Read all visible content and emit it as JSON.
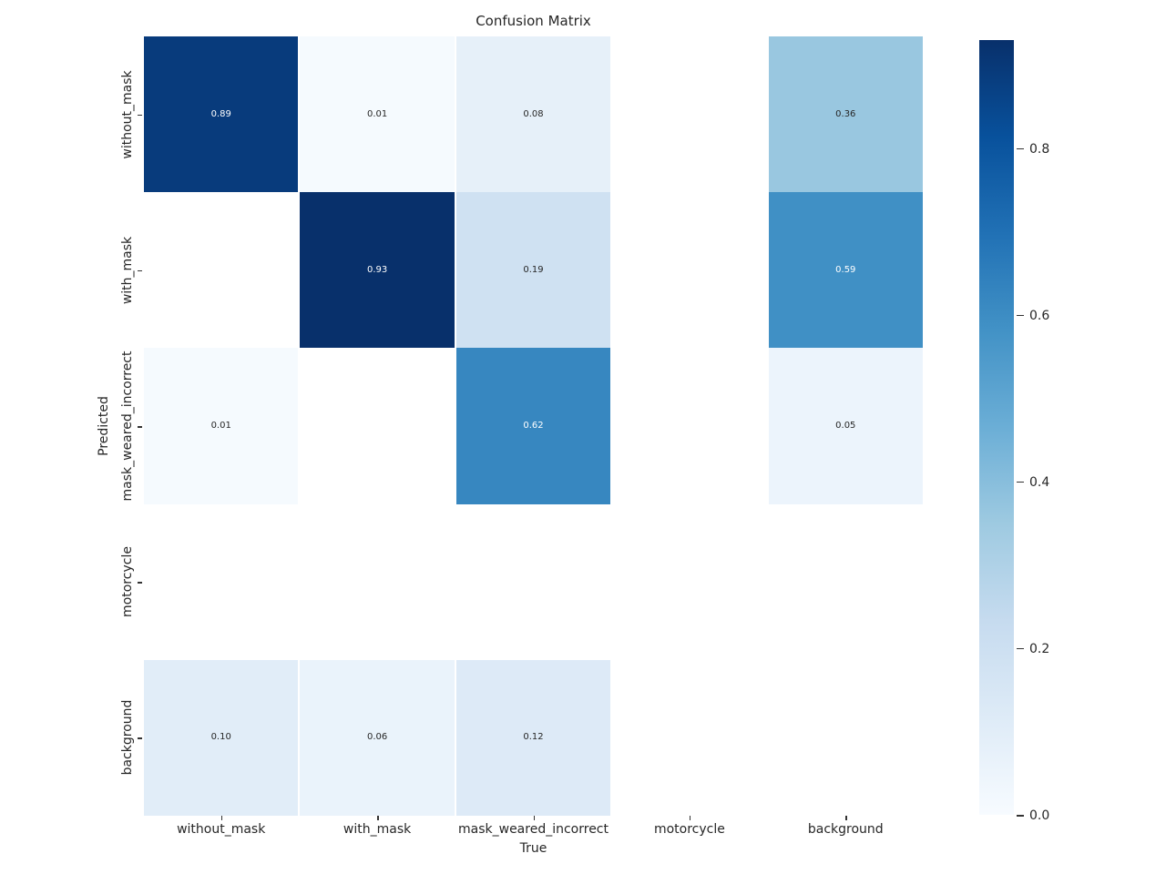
{
  "title": "Confusion Matrix",
  "chart_data": {
    "type": "heatmap",
    "title": "Confusion Matrix",
    "xlabel": "True",
    "ylabel": "Predicted",
    "x_categories": [
      "without_mask",
      "with_mask",
      "mask_weared_incorrect",
      "motorcycle",
      "background"
    ],
    "y_categories": [
      "without_mask",
      "with_mask",
      "mask_weared_incorrect",
      "motorcycle",
      "background"
    ],
    "matrix": [
      [
        0.89,
        0.01,
        0.08,
        null,
        0.36
      ],
      [
        null,
        0.93,
        0.19,
        null,
        0.59
      ],
      [
        0.01,
        null,
        0.62,
        null,
        0.05
      ],
      [
        null,
        null,
        null,
        null,
        null
      ],
      [
        0.1,
        0.06,
        0.12,
        null,
        null
      ]
    ],
    "value_format_decimals": 2,
    "vmin": 0.0,
    "vmax": 0.93,
    "colormap_name": "Blues",
    "colormap_stops": [
      {
        "u": 0.0,
        "color": "#f7fbff"
      },
      {
        "u": 0.125,
        "color": "#deebf7"
      },
      {
        "u": 0.25,
        "color": "#c6dbef"
      },
      {
        "u": 0.375,
        "color": "#9ecae1"
      },
      {
        "u": 0.5,
        "color": "#6baed6"
      },
      {
        "u": 0.625,
        "color": "#4292c6"
      },
      {
        "u": 0.75,
        "color": "#2171b5"
      },
      {
        "u": 0.875,
        "color": "#08519c"
      },
      {
        "u": 1.0,
        "color": "#08306b"
      }
    ],
    "colorbar_ticks": [
      "0.0",
      "0.2",
      "0.4",
      "0.6",
      "0.8"
    ],
    "colorbar_tick_values": [
      0.0,
      0.2,
      0.4,
      0.6,
      0.8
    ],
    "annotation_dark_text_color": "#262626",
    "annotation_light_text_color": "#ffffff",
    "legend_position": "right-colorbar",
    "grid": "off"
  }
}
